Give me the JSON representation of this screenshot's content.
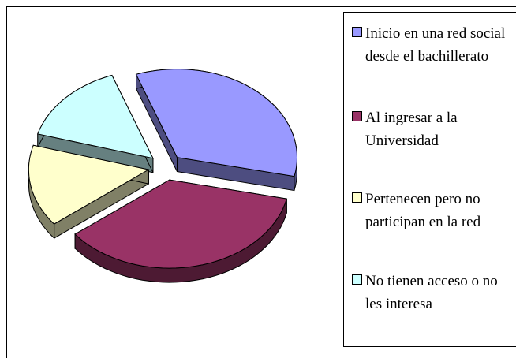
{
  "chart_data": {
    "type": "pie",
    "categories": [
      "Inicio en una red social desde el bachillerato",
      "Al ingresar a la Universidad",
      "Pertenecen pero no participan en la red",
      "No tienen acceso o no les interesa"
    ],
    "values": [
      34,
      36,
      15,
      15
    ],
    "colors": [
      "#9999ff",
      "#993366",
      "#ffffcc",
      "#ccffff"
    ],
    "legend": "right"
  }
}
